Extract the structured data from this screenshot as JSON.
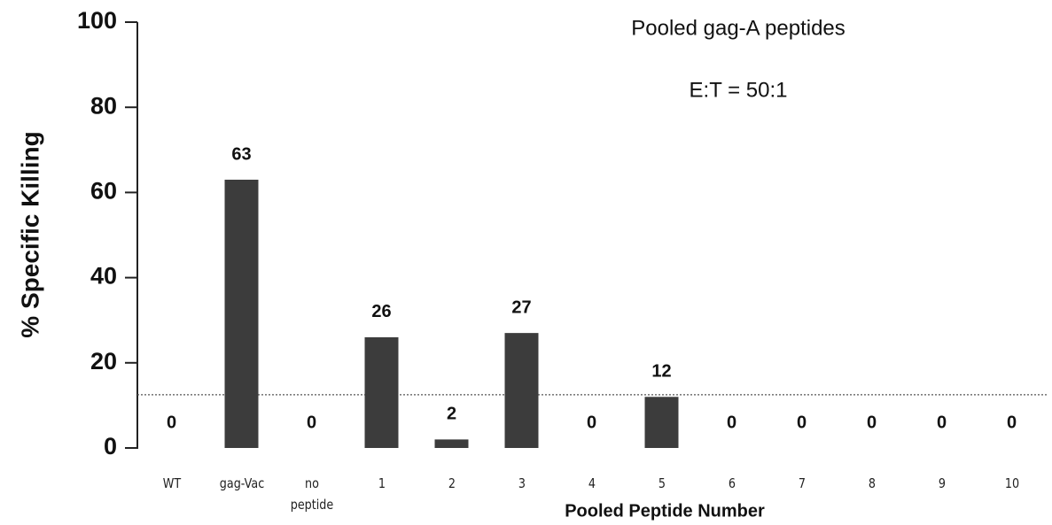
{
  "chart_data": {
    "type": "bar",
    "annotations": [
      "Pooled gag-A peptides",
      "E:T = 50:1"
    ],
    "x_label": "Pooled Peptide Number",
    "y_label": "% Specific Killing",
    "categories": [
      "WT",
      "gag-Vac",
      "no peptide",
      "1",
      "2",
      "3",
      "4",
      "5",
      "6",
      "7",
      "8",
      "9",
      "10"
    ],
    "values": [
      0,
      63,
      0,
      26,
      2,
      27,
      0,
      12,
      0,
      0,
      0,
      0,
      0
    ],
    "color": "#3c3c3c",
    "reference_line": 12.5,
    "ylim": [
      0,
      100
    ],
    "yticks": [
      0,
      20,
      40,
      60,
      80,
      100
    ]
  }
}
